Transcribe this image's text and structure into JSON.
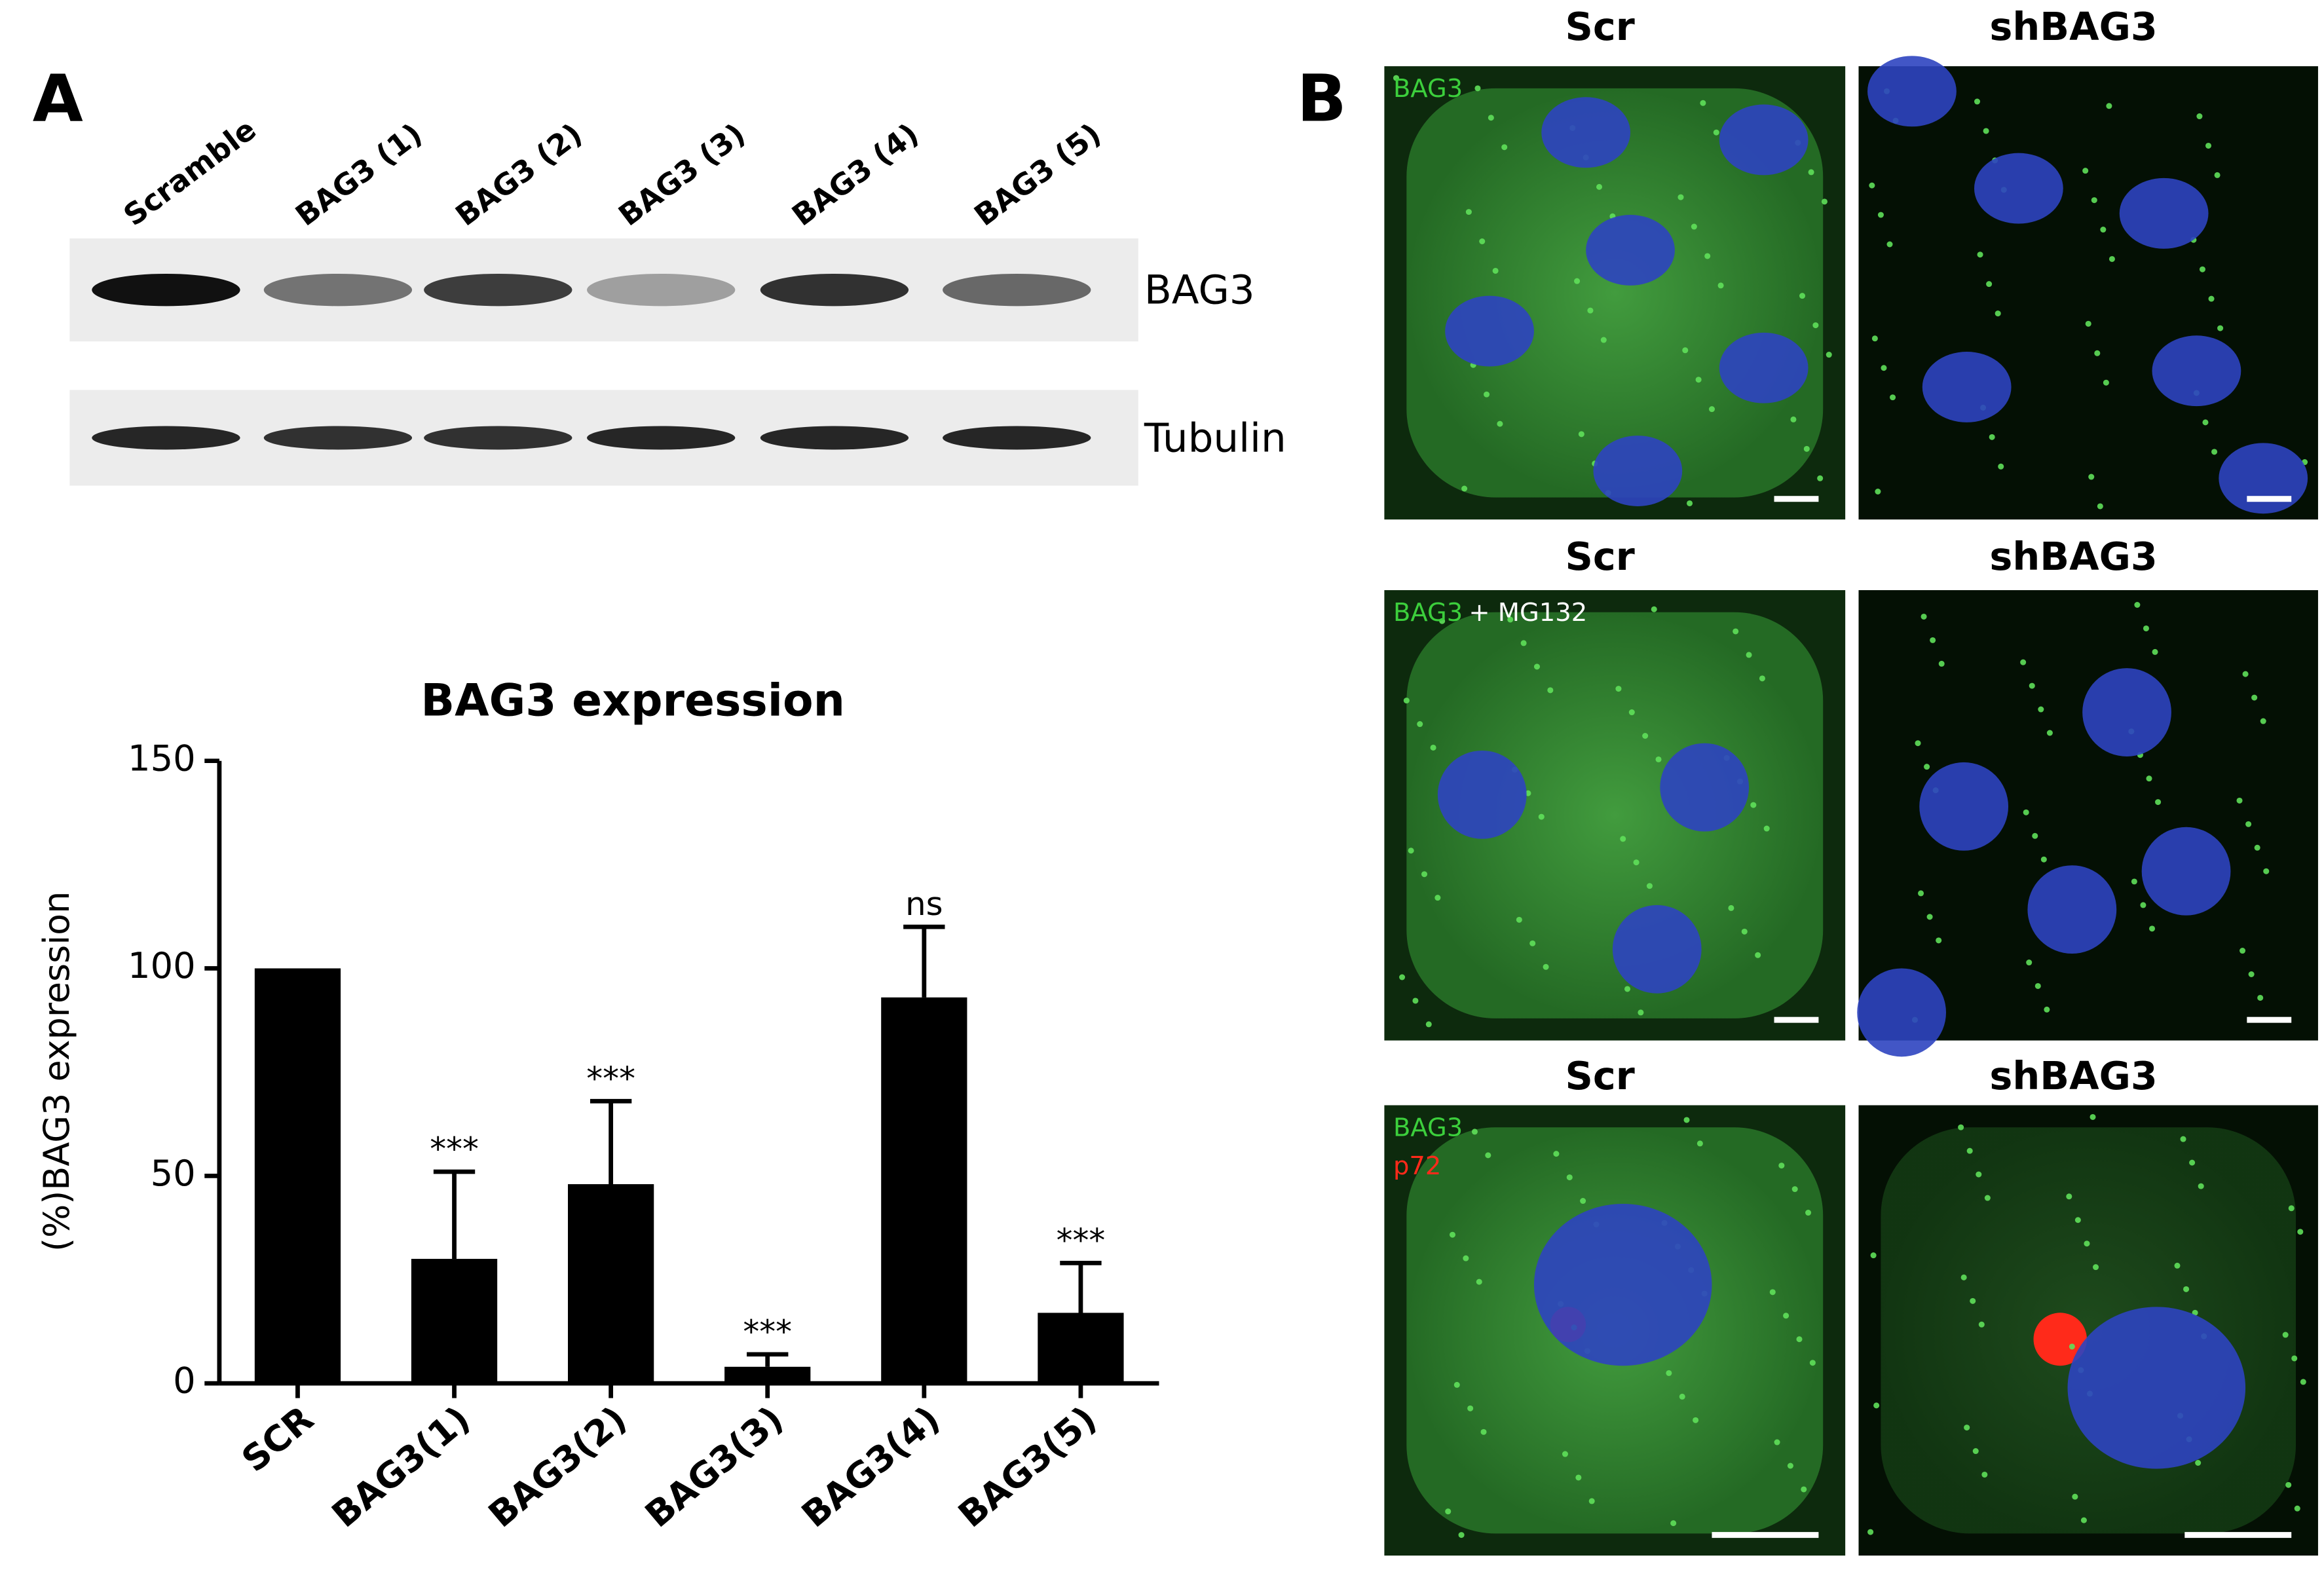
{
  "panel_labels": [
    "A",
    "B"
  ],
  "blot": {
    "lanes": [
      "Scramble",
      "BAG3 (1)",
      "BAG3 (2)",
      "BAG3 (3)",
      "BAG3 (4)",
      "BAG3 (5)"
    ],
    "bands": [
      "BAG3",
      "Tubulin"
    ]
  },
  "microscopy": {
    "rows": [
      {
        "columns": [
          "Scr",
          "shBAG3"
        ],
        "stain": [
          "BAG3"
        ]
      },
      {
        "columns": [
          "Scr",
          "shBAG3"
        ],
        "stain": [
          "BAG3",
          "+ MG132"
        ]
      },
      {
        "columns": [
          "Scr",
          "shBAG3"
        ],
        "stain": [
          "BAG3",
          "p72"
        ]
      }
    ]
  },
  "chart_data": {
    "type": "bar",
    "title": "BAG3 expression",
    "y_label": "(%)BAG3 expression",
    "categories": [
      "SCR",
      "BAG3(1)",
      "BAG3(2)",
      "BAG3(3)",
      "BAG3(4)",
      "BAG3(5)"
    ],
    "values": [
      100,
      30,
      48,
      4,
      93,
      17
    ],
    "errors": [
      0,
      21,
      20,
      3,
      17,
      12
    ],
    "annotations": [
      null,
      "***",
      "***",
      "***",
      "ns",
      "***"
    ],
    "color": "#000000",
    "ylim": [
      0,
      150
    ],
    "yticks": [
      0,
      50,
      100,
      150
    ],
    "grid": false
  }
}
